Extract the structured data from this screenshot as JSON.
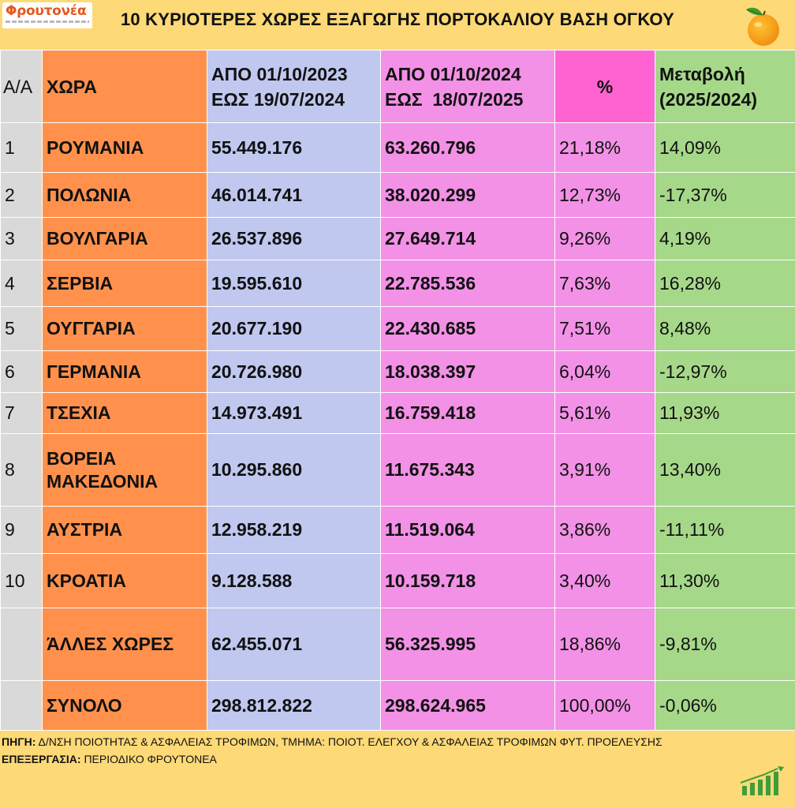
{
  "logo": {
    "name": "Φρουτονέα"
  },
  "title": "10 ΚΥΡΙΟΤΕΡΕΣ ΧΩΡΕΣ ΕΞΑΓΩΓΗΣ ΠΟΡΤΟΚΑΛΙΟΥ ΒΑΣΗ ΟΓΚΟΥ",
  "table": {
    "headers": {
      "aa": "Α/Α",
      "country": "ΧΩΡΑ",
      "period1_line1": "ΑΠΟ 01/10/2023",
      "period1_line2": "ΕΩΣ 19/07/2024",
      "period2_line1": "ΑΠΟ 01/10/2024",
      "period2_line2": "ΕΩΣ  18/07/2025",
      "pct": "%",
      "change_line1": "Μεταβολή",
      "change_line2": "(2025/2024)"
    },
    "rows": [
      {
        "aa": "1",
        "country": "ΡΟΥΜΑΝΙΑ",
        "p1": "55.449.176",
        "p2": "63.260.796",
        "pct": "21,18%",
        "change": "14,09%"
      },
      {
        "aa": "2",
        "country": "ΠΟΛΩΝΙΑ",
        "p1": "46.014.741",
        "p2": "38.020.299",
        "pct": "12,73%",
        "change": "-17,37%"
      },
      {
        "aa": "3",
        "country": "ΒΟΥΛΓΑΡΙΑ",
        "p1": "26.537.896",
        "p2": "27.649.714",
        "pct": "9,26%",
        "change": "4,19%"
      },
      {
        "aa": "4",
        "country": "ΣΕΡΒΙΑ",
        "p1": "19.595.610",
        "p2": "22.785.536",
        "pct": "7,63%",
        "change": "16,28%"
      },
      {
        "aa": "5",
        "country": "ΟΥΓΓΑΡΙΑ",
        "p1": "20.677.190",
        "p2": "22.430.685",
        "pct": "7,51%",
        "change": "8,48%"
      },
      {
        "aa": "6",
        "country": "ΓΕΡΜΑΝΙΑ",
        "p1": "20.726.980",
        "p2": "18.038.397",
        "pct": "6,04%",
        "change": "-12,97%"
      },
      {
        "aa": "7",
        "country": "ΤΣΕΧΙΑ",
        "p1": "14.973.491",
        "p2": "16.759.418",
        "pct": "5,61%",
        "change": "11,93%"
      },
      {
        "aa": "8",
        "country": "ΒΟΡΕΙΑ ΜΑΚΕΔΟΝΙΑ",
        "p1": "10.295.860",
        "p2": "11.675.343",
        "pct": "3,91%",
        "change": "13,40%"
      },
      {
        "aa": "9",
        "country": "ΑΥΣΤΡΙΑ",
        "p1": "12.958.219",
        "p2": "11.519.064",
        "pct": "3,86%",
        "change": "-11,11%"
      },
      {
        "aa": "10",
        "country": "ΚΡΟΑΤΙΑ",
        "p1": "9.128.588",
        "p2": "10.159.718",
        "pct": "3,40%",
        "change": "11,30%"
      },
      {
        "aa": "",
        "country": "ΆΛΛΕΣ ΧΩΡΕΣ",
        "p1": "62.455.071",
        "p2": "56.325.995",
        "pct": "18,86%",
        "change": "-9,81%"
      },
      {
        "aa": "",
        "country": "ΣΥΝΟΛΟ",
        "p1": "298.812.822",
        "p2": "298.624.965",
        "pct": "100,00%",
        "change": "-0,06%"
      }
    ]
  },
  "footer": {
    "source_label": "ΠΗΓΗ:",
    "source_text": "Δ/ΝΣΗ ΠΟΙΟΤΗΤΑΣ & ΑΣΦΑΛΕΙΑΣ ΤΡΟΦΙΜΩΝ, ΤΜΗΜΑ: ΠΟΙΟΤ. ΕΛΕΓΧΟΥ & ΑΣΦΑΛΕΙΑΣ ΤΡΟΦΙΜΩΝ ΦΥΤ. ΠΡΟΕΛΕΥΣΗΣ",
    "processing_label": "ΕΠΕΞΕΡΓΑΣΙΑ:",
    "processing_text": "ΠΕΡΙΟΔΙΚΟ ΦΡΟΥΤΟΝΕΑ"
  },
  "colors": {
    "background": "#fdd977",
    "aa_column": "#d9d9d9",
    "country_column": "#ff914d",
    "period1_column": "#c0c8f0",
    "period2_column": "#f291e6",
    "pct_header": "#ff63d2",
    "change_column": "#a6d88a"
  },
  "icons": [
    "orange-fruit-icon",
    "growth-chart-icon"
  ]
}
